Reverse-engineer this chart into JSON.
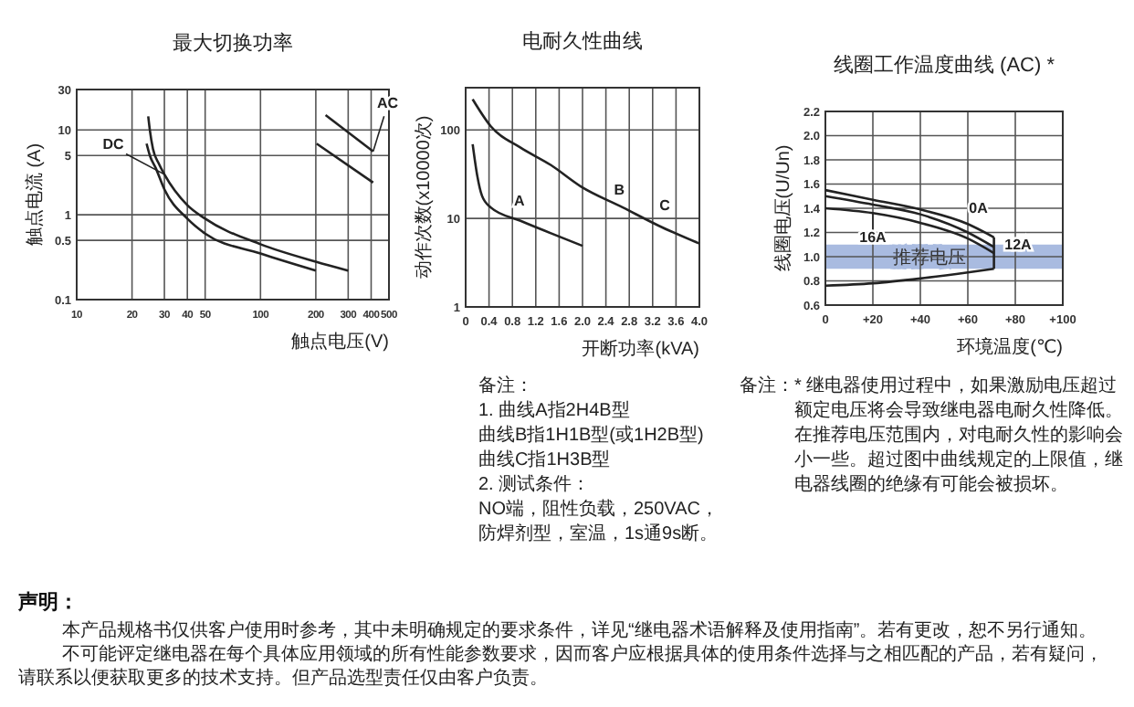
{
  "chart_data": [
    {
      "type": "line",
      "title": "最大切换功率",
      "xlabel": "触点电压(V)",
      "ylabel": "触点电流 (A)",
      "log": "xy",
      "grid": true,
      "xlim": [
        10,
        500
      ],
      "ylim": [
        0.1,
        30
      ],
      "xticks": [
        10,
        20,
        30,
        40,
        50,
        100,
        200,
        300,
        400,
        500
      ],
      "yticks": [
        0.1,
        0.5,
        1,
        5,
        10,
        30
      ],
      "series": [
        {
          "color": "#222222",
          "x": [
            24.5,
            25,
            26,
            28,
            30,
            40,
            50,
            100,
            200,
            300
          ],
          "values": [
            14.5,
            10,
            6,
            4,
            3,
            1.3,
            0.9,
            0.45,
            0.28,
            0.22
          ]
        },
        {
          "color": "#222222",
          "x": [
            24,
            25,
            27,
            30,
            40,
            50,
            100,
            200
          ],
          "values": [
            6.9,
            5,
            3.5,
            2,
            0.9,
            0.6,
            0.35,
            0.22
          ]
        },
        {
          "color": "#222222",
          "x": [
            226,
            410
          ],
          "values": [
            15,
            5.6
          ]
        },
        {
          "color": "#222222",
          "x": [
            202,
            410
          ],
          "values": [
            6.9,
            2.4
          ]
        }
      ],
      "annotations": [
        {
          "text": "DC",
          "x": 30,
          "y": 3
        },
        {
          "text": "AC",
          "x": 410,
          "y": 5.6
        }
      ]
    },
    {
      "type": "line",
      "title": "电耐久性曲线",
      "xlabel": "开断功率(kVA)",
      "ylabel": "动作次数(x10000次)",
      "log": "y",
      "grid": true,
      "xlim": [
        0,
        4
      ],
      "ylim": [
        1,
        300
      ],
      "xticks": [
        0,
        0.4,
        0.8,
        1.2,
        1.6,
        {
          "value": 2,
          "label": "2.0"
        },
        2.4,
        2.8,
        3.2,
        3.6,
        {
          "value": 4,
          "label": "4.0"
        }
      ],
      "yticks": [
        1,
        10,
        100
      ],
      "series": [
        {
          "color": "#222222",
          "x": [
            0.12,
            0.2,
            0.28,
            0.43,
            0.94,
            1.46,
            2.0
          ],
          "values": [
            69,
            30,
            18,
            13.3,
            9.4,
            6.8,
            4.9
          ]
        },
        {
          "color": "#222222",
          "x": [
            0.12,
            0.43,
            0.94,
            1.46,
            1.97,
            2.69,
            3.3,
            4.0
          ],
          "values": [
            222,
            110,
            63,
            40,
            23,
            13.3,
            8.3,
            5.2
          ]
        }
      ],
      "annotations": [
        {
          "text": "A",
          "x": 0.92,
          "y": 11.5
        },
        {
          "text": "B",
          "x": 2.69,
          "y": 12.6
        },
        {
          "text": "C",
          "x": 3.28,
          "y": 9
        },
        "备注：",
        "1. 曲线A指2H4B型",
        "曲线B指1H1B型(或1H2B型)",
        "曲线C指1H3B型",
        "2. 测试条件：",
        "NO端，阻性负载，250VAC，",
        "防焊剂型，室温，1s通9s断。"
      ]
    },
    {
      "type": "line",
      "title": "线圈工作温度曲线 (AC) *",
      "xlabel": "环境温度(℃)",
      "ylabel": "线圈电压(U/Un)",
      "grid": true,
      "xlim": [
        0,
        100
      ],
      "ylim": [
        0.6,
        2.2
      ],
      "xticks": [
        0,
        {
          "value": 20,
          "label": "+20"
        },
        {
          "value": 40,
          "label": "+40"
        },
        {
          "value": 60,
          "label": "+60"
        },
        {
          "value": 80,
          "label": "+80"
        },
        {
          "value": 100,
          "label": "+100"
        }
      ],
      "yticks": [
        0.6,
        0.8,
        {
          "value": 1,
          "label": "1.0"
        },
        1.2,
        1.4,
        1.6,
        1.8,
        {
          "value": 2,
          "label": "2.0"
        },
        2.2
      ],
      "bands": [
        {
          "axis": "y",
          "from": 0.9,
          "to": 1.1,
          "label": "推荐电压",
          "color": "#a9bbe0"
        }
      ],
      "series": [
        {
          "color": "#222222",
          "x": [
            0,
            20,
            40,
            60,
            71
          ],
          "values": [
            1.55,
            1.47,
            1.39,
            1.27,
            1.16
          ]
        },
        {
          "color": "#222222",
          "x": [
            0,
            20,
            40,
            60,
            71
          ],
          "values": [
            1.5,
            1.43,
            1.35,
            1.2,
            1.08
          ]
        },
        {
          "color": "#222222",
          "x": [
            0,
            20,
            40,
            60,
            71
          ],
          "values": [
            1.4,
            1.36,
            1.28,
            1.15,
            1.03
          ]
        },
        {
          "color": "#222222",
          "x": [
            0,
            20,
            40,
            60,
            71
          ],
          "values": [
            0.76,
            0.78,
            0.82,
            0.87,
            0.9
          ]
        },
        {
          "color": "#222222",
          "x": [
            71,
            71
          ],
          "values": [
            1.16,
            0.9
          ]
        }
      ],
      "annotations": [
        {
          "text": "0A",
          "x": 66,
          "y": 1.27
        },
        {
          "text": "16A",
          "x": 20,
          "y": 1.36
        },
        {
          "text": "12A",
          "x": 75,
          "y": 1.06
        },
        "备注：* 继电器使用过程中，如果激励电压超过额定电压将会导致继电器电耐久性降低。在推荐电压范围内，对电耐久性的影响会小一些。超过图中曲线规定的上限值，继电器线圈的绝缘有可能会被损坏。"
      ]
    },
    {
      "type": "other",
      "title": "声明：",
      "annotations": [
        "本产品规格书仅供客户使用时参考，其中未明确规定的要求条件，详见“继电器术语解释及使用指南”。若有更改，恕不另行通知。",
        "不可能评定继电器在每个具体应用领域的所有性能参数要求，因而客户应根据具体的使用条件选择与之相匹配的产品，若有疑问，请联系以便获取更多的技术支持。但产品选型责任仅由客户负责。"
      ]
    }
  ]
}
